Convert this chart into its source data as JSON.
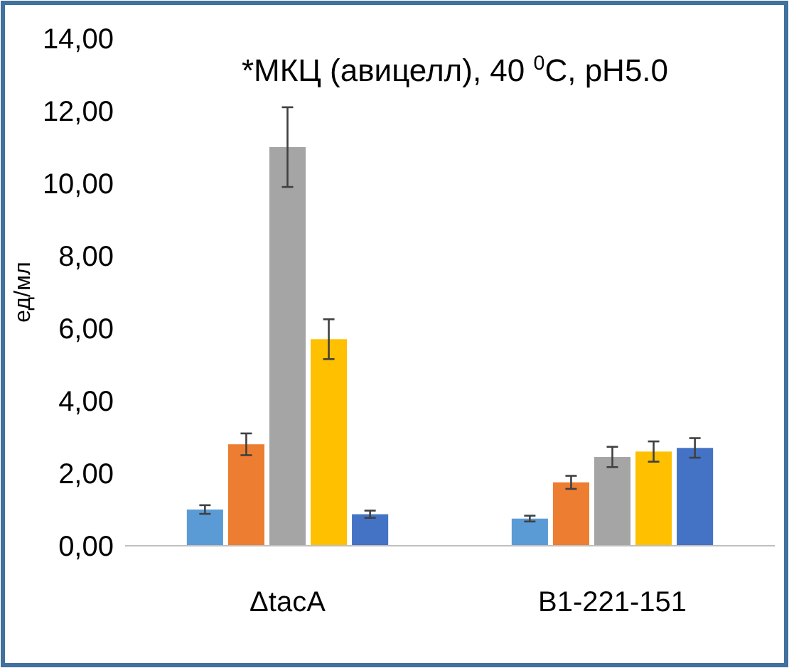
{
  "chart_data": {
    "type": "bar",
    "title": "*МКЦ (авицелл), 40 $^{0}$C, pH5.0",
    "ylabel": "ед/мл",
    "categories": [
      "ΔtacA",
      "B1-221-151"
    ],
    "series": [
      {
        "color": "#5b9bd5",
        "values": [
          1.0,
          0.75
        ],
        "errors": [
          0.12,
          0.08
        ]
      },
      {
        "color": "#ed7d31",
        "values": [
          2.8,
          1.75
        ],
        "errors": [
          0.3,
          0.18
        ]
      },
      {
        "color": "#a5a5a5",
        "values": [
          11.0,
          2.45
        ],
        "errors": [
          1.1,
          0.28
        ]
      },
      {
        "color": "#ffc000",
        "values": [
          5.7,
          2.6
        ],
        "errors": [
          0.55,
          0.28
        ]
      },
      {
        "color": "#4472c4",
        "values": [
          0.87,
          2.7
        ],
        "errors": [
          0.1,
          0.27
        ]
      }
    ],
    "ylim": [
      0,
      14
    ],
    "yticks": [
      {
        "value": 0,
        "label": "0,00"
      },
      {
        "value": 2,
        "label": "2,00"
      },
      {
        "value": 4,
        "label": "4,00"
      },
      {
        "value": 6,
        "label": "6,00"
      },
      {
        "value": 8,
        "label": "8,00"
      },
      {
        "value": 10,
        "label": "10,00"
      },
      {
        "value": 12,
        "label": "12,00"
      },
      {
        "value": 14,
        "label": "14,00"
      }
    ],
    "grid": false
  }
}
